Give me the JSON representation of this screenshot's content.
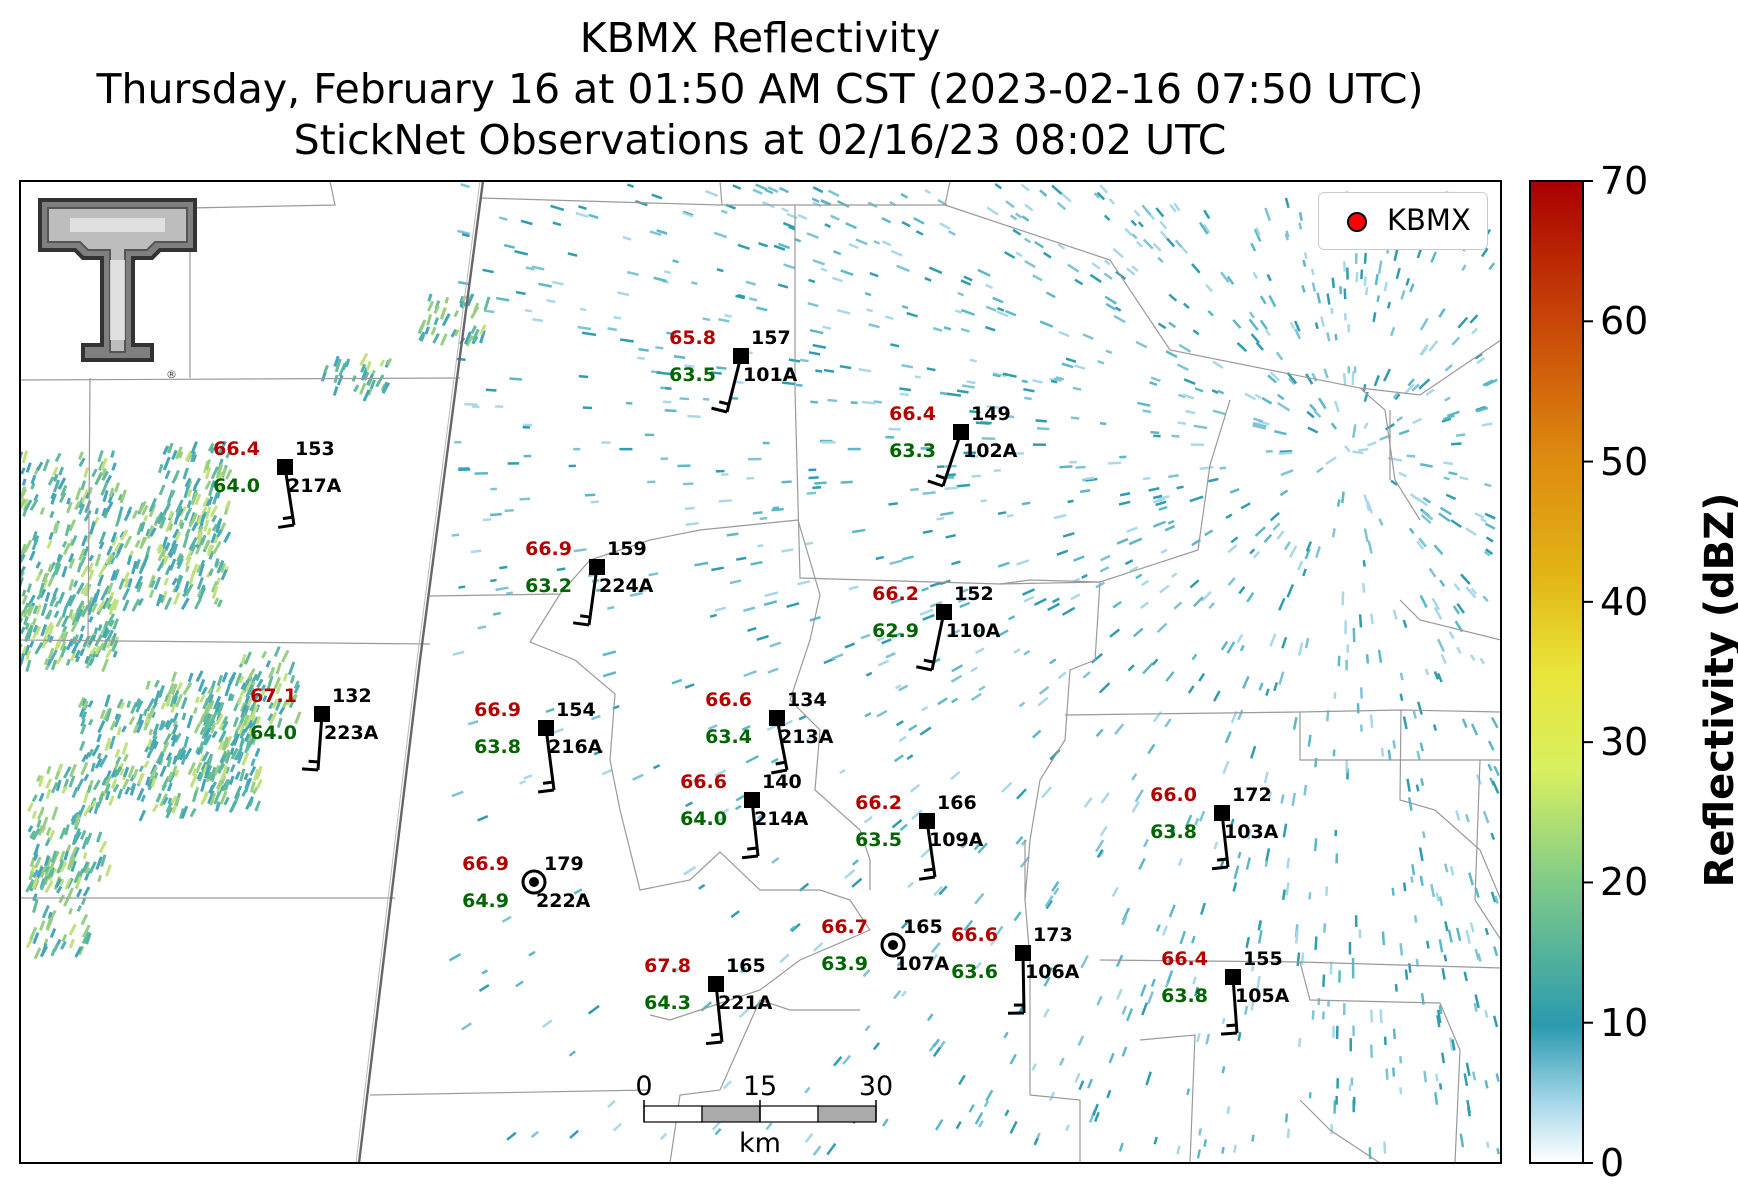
{
  "title": {
    "line1": "KBMX Reflectivity",
    "line2": "Thursday, February 16 at 01:50 AM CST (2023-02-16 07:50 UTC)",
    "line3": "StickNet Observations at 02/16/23 08:02 UTC"
  },
  "legend": {
    "label": "KBMX",
    "marker_color": "#ff0000"
  },
  "colorbar": {
    "label": "Reflectivity (dBZ)",
    "ticks": [
      "0",
      "10",
      "20",
      "30",
      "40",
      "50",
      "60",
      "70"
    ],
    "range": [
      0,
      70
    ],
    "colors": [
      "#ffffff",
      "#a8d8ea",
      "#2a9aae",
      "#52b48e",
      "#9fd36e",
      "#e8f44f",
      "#e8c41d",
      "#e08a10",
      "#cc4a0a",
      "#aa0000"
    ]
  },
  "scalebar": {
    "ticks": [
      "0",
      "15",
      "30"
    ],
    "unit": "km"
  },
  "colors": {
    "temperature": "#b30000",
    "dewpoint": "#006400",
    "station_id": "#000000"
  },
  "stations": [
    {
      "id": "101A",
      "number": "157",
      "temp": "65.8",
      "dewpoint": "63.5"
    },
    {
      "id": "102A",
      "number": "149",
      "temp": "66.4",
      "dewpoint": "63.3"
    },
    {
      "id": "217A",
      "number": "153",
      "temp": "66.4",
      "dewpoint": "64.0"
    },
    {
      "id": "224A",
      "number": "159",
      "temp": "66.9",
      "dewpoint": "63.2"
    },
    {
      "id": "110A",
      "number": "152",
      "temp": "66.2",
      "dewpoint": "62.9"
    },
    {
      "id": "223A",
      "number": "132",
      "temp": "67.1",
      "dewpoint": "64.0"
    },
    {
      "id": "216A",
      "number": "154",
      "temp": "66.9",
      "dewpoint": "63.8"
    },
    {
      "id": "213A",
      "number": "134",
      "temp": "66.6",
      "dewpoint": "63.4"
    },
    {
      "id": "214A",
      "number": "140",
      "temp": "66.6",
      "dewpoint": "64.0"
    },
    {
      "id": "109A",
      "number": "166",
      "temp": "66.2",
      "dewpoint": "63.5"
    },
    {
      "id": "103A",
      "number": "172",
      "temp": "66.0",
      "dewpoint": "63.8"
    },
    {
      "id": "222A",
      "number": "179",
      "temp": "66.9",
      "dewpoint": "64.9"
    },
    {
      "id": "107A",
      "number": "165",
      "temp": "66.7",
      "dewpoint": "63.9"
    },
    {
      "id": "106A",
      "number": "173",
      "temp": "66.6",
      "dewpoint": "63.6"
    },
    {
      "id": "221A",
      "number": "165",
      "temp": "67.8",
      "dewpoint": "64.3"
    },
    {
      "id": "105A",
      "number": "155",
      "temp": "66.4",
      "dewpoint": "63.8"
    }
  ]
}
